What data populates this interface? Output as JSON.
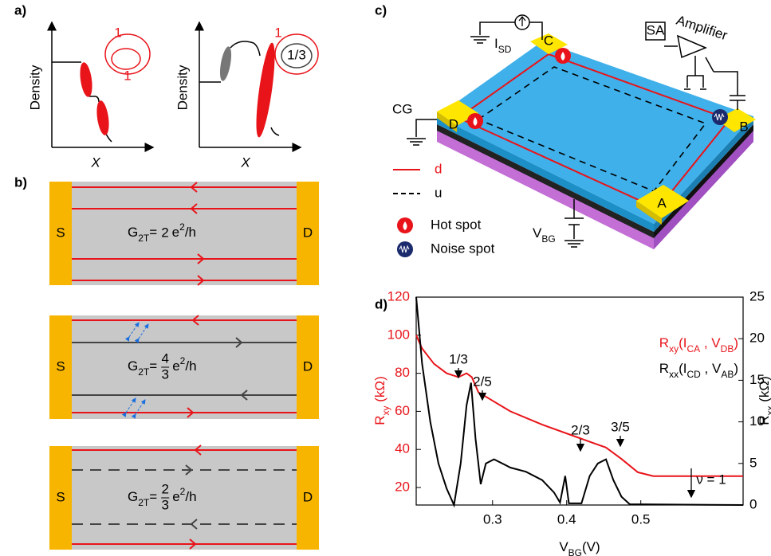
{
  "panel_a": {
    "label": "a)",
    "left": {
      "y_label": "Density",
      "x_label": "X",
      "loop_outer": "1",
      "loop_inner": "1"
    },
    "right": {
      "y_label": "Density",
      "x_label": "X",
      "loop_outer": "1",
      "loop_inner": "1/3"
    }
  },
  "panel_b": {
    "label": "b)",
    "rows": [
      {
        "source": "S",
        "drain": "D",
        "conductance": {
          "symbol": "G",
          "subscript": "2T",
          "equals": "=",
          "coefficient": "2",
          "unit": "e",
          "exponent": "2",
          "per": "/h"
        }
      },
      {
        "source": "S",
        "drain": "D",
        "conductance": {
          "symbol": "G",
          "subscript": "2T",
          "equals": "=",
          "coefficient": {
            "numerator": "4",
            "denominator": "3"
          },
          "unit": "e",
          "exponent": "2",
          "per": "/h"
        }
      },
      {
        "source": "S",
        "drain": "D",
        "conductance": {
          "symbol": "G",
          "subscript": "2T",
          "equals": "=",
          "coefficient": {
            "numerator": "2",
            "denominator": "3"
          },
          "unit": "e",
          "exponent": "2",
          "per": "/h"
        }
      }
    ]
  },
  "panel_c": {
    "label": "c)",
    "contact_a": "A",
    "contact_b": "B",
    "contact_c": "C",
    "contact_d": "D",
    "gate": "CG",
    "current": [
      "I",
      "SD"
    ],
    "back_gate": [
      "V",
      "BG"
    ],
    "analyzer": "SA",
    "amplifier": "Amplifier",
    "legend": [
      "d",
      "u",
      "Hot spot",
      "Noise spot"
    ]
  },
  "chart_data": {
    "type": "line",
    "label": "d)",
    "x_label": [
      "V",
      "BG",
      "(V)"
    ],
    "y_label": [
      "R",
      "xy",
      " (kΩ)"
    ],
    "y2_label": [
      "R",
      "xx",
      " (kΩ)"
    ],
    "xlim": [
      0.197,
      0.638
    ],
    "ylim": [
      10.8,
      120
    ],
    "y2lim": [
      0,
      25
    ],
    "xticks": [
      0.3,
      0.4,
      0.5
    ],
    "yticks": [
      20,
      40,
      60,
      80,
      100,
      120
    ],
    "y2ticks": [
      0,
      5,
      10,
      15,
      20,
      25
    ],
    "annotations": [
      "1/3",
      "2/5",
      "3/5",
      "2/3",
      "ν = 1"
    ],
    "series": [
      {
        "name": [
          "R",
          "xy",
          "(I",
          "CA",
          " , V",
          "DB",
          ")"
        ],
        "color": "#e8141a",
        "x": [
          0.197,
          0.205,
          0.221,
          0.238,
          0.254,
          0.265,
          0.272,
          0.281,
          0.294,
          0.324,
          0.367,
          0.41,
          0.431,
          0.453,
          0.474,
          0.496,
          0.517,
          0.638
        ],
        "values": [
          100,
          93,
          85,
          80,
          78,
          80,
          78,
          70,
          67,
          60,
          53,
          47,
          44,
          41,
          35,
          28,
          26,
          26
        ]
      },
      {
        "name": [
          "R",
          "xx",
          "(I",
          "CD",
          " , V",
          "AB",
          ")"
        ],
        "color": "#000000",
        "axis": "y2",
        "x": [
          0.197,
          0.205,
          0.216,
          0.227,
          0.238,
          0.248,
          0.257,
          0.265,
          0.271,
          0.277,
          0.284,
          0.291,
          0.302,
          0.324,
          0.345,
          0.367,
          0.383,
          0.391,
          0.398,
          0.403,
          0.42,
          0.431,
          0.442,
          0.453,
          0.463,
          0.474,
          0.485,
          0.638
        ],
        "values": [
          25,
          17,
          10,
          5,
          2,
          0,
          5,
          12,
          14.7,
          8,
          2.5,
          5,
          5.5,
          4.5,
          4,
          3,
          1.5,
          0.3,
          3.5,
          0.2,
          0.2,
          3.5,
          5,
          5.5,
          3,
          1,
          0.1,
          0
        ]
      }
    ]
  }
}
